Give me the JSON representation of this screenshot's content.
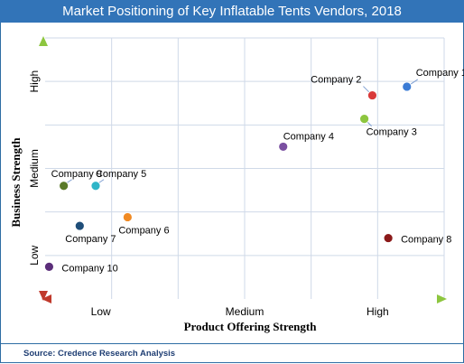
{
  "chart_data": {
    "type": "scatter",
    "title": "Market Positioning of Key Inflatable Tents Vendors, 2018",
    "xlabel": "Product Offering Strength",
    "ylabel": "Business Strength",
    "x_categories": [
      "Low",
      "Medium",
      "High"
    ],
    "y_categories": [
      "Low",
      "Medium",
      "High"
    ],
    "xlim": [
      0,
      3
    ],
    "ylim": [
      0,
      3
    ],
    "grid": true,
    "points": [
      {
        "label": "Company 1",
        "x": 2.72,
        "y": 2.44,
        "color": "#3a7bd5"
      },
      {
        "label": "Company 2",
        "x": 2.46,
        "y": 2.34,
        "color": "#d93a3a"
      },
      {
        "label": "Company 3",
        "x": 2.4,
        "y": 2.07,
        "color": "#8dc63f"
      },
      {
        "label": "Company 4",
        "x": 1.79,
        "y": 1.75,
        "color": "#7a4fa1"
      },
      {
        "label": "Company 5",
        "x": 0.38,
        "y": 1.3,
        "color": "#2fb5c8"
      },
      {
        "label": "Company 6",
        "x": 0.62,
        "y": 0.94,
        "color": "#f08a24"
      },
      {
        "label": "Company 7",
        "x": 0.26,
        "y": 0.84,
        "color": "#1f4e79"
      },
      {
        "label": "Company 8",
        "x": 2.58,
        "y": 0.7,
        "color": "#8b1a1a"
      },
      {
        "label": "Company 9",
        "x": 0.14,
        "y": 1.3,
        "color": "#5a7a2a"
      },
      {
        "label": "Company 10",
        "x": 0.03,
        "y": 0.37,
        "color": "#5b2e7a"
      }
    ]
  },
  "source": "Source: Credence Research Analysis"
}
